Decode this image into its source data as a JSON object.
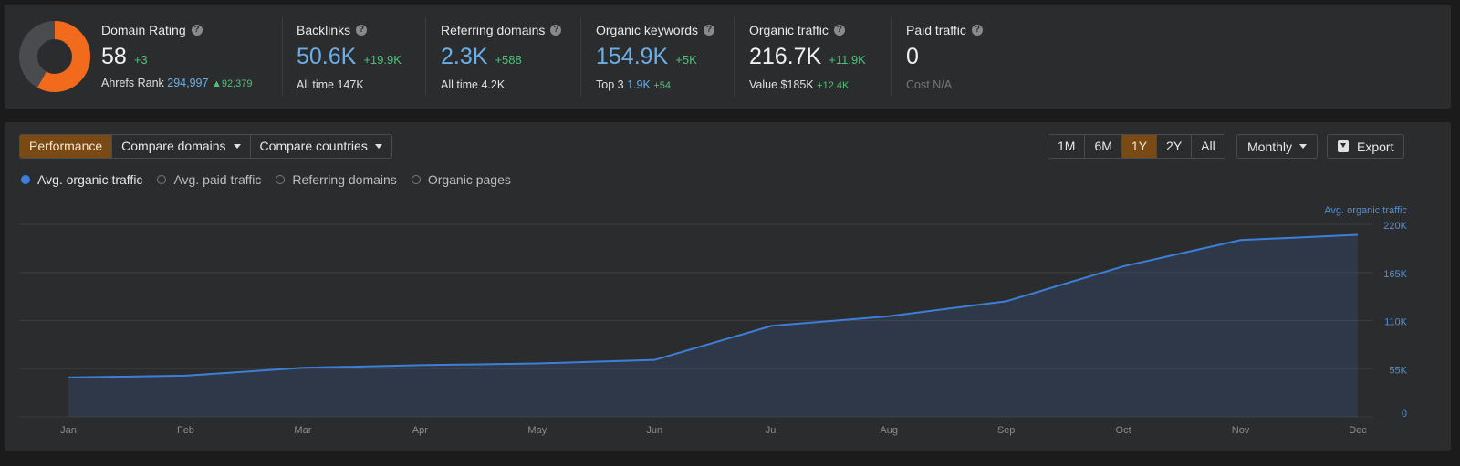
{
  "metrics": {
    "domain_rating": {
      "label": "Domain Rating",
      "help": "?",
      "value": "58",
      "delta": "+3",
      "rank_label": "Ahrefs Rank",
      "rank_value": "294,997",
      "rank_delta": "92,379",
      "score": 58
    },
    "backlinks": {
      "label": "Backlinks",
      "help": "?",
      "value": "50.6K",
      "delta": "+19.9K",
      "sub_label": "All time",
      "sub_value": "147K"
    },
    "referring_domains": {
      "label": "Referring domains",
      "help": "?",
      "value": "2.3K",
      "delta": "+588",
      "sub_label": "All time",
      "sub_value": "4.2K"
    },
    "organic_keywords": {
      "label": "Organic keywords",
      "help": "?",
      "value": "154.9K",
      "delta": "+5K",
      "sub_label": "Top 3",
      "sub_value": "1.9K",
      "sub_delta": "+54"
    },
    "organic_traffic": {
      "label": "Organic traffic",
      "help": "?",
      "value": "216.7K",
      "delta": "+11.9K",
      "sub_label": "Value",
      "sub_value": "$185K",
      "sub_delta": "+12.4K"
    },
    "paid_traffic": {
      "label": "Paid traffic",
      "help": "?",
      "value": "0",
      "sub_label": "Cost",
      "sub_value": "N/A"
    }
  },
  "toolbar": {
    "tabs": [
      "Performance",
      "Compare domains",
      "Compare countries"
    ],
    "active_tab": "Performance",
    "ranges": [
      "1M",
      "6M",
      "1Y",
      "2Y",
      "All"
    ],
    "active_range": "1Y",
    "interval": "Monthly",
    "export": "Export"
  },
  "legend": [
    {
      "label": "Avg. organic traffic",
      "active": true
    },
    {
      "label": "Avg. paid traffic",
      "active": false
    },
    {
      "label": "Referring domains",
      "active": false
    },
    {
      "label": "Organic pages",
      "active": false
    }
  ],
  "colors": {
    "accent": "#3d7fd8",
    "orange": "#f26a1b",
    "active_tab": "#7a4a14",
    "positive": "#4ec27a"
  },
  "icons": {
    "help": "question-circle-icon",
    "dropdown": "caret-down-icon",
    "export": "download-icon",
    "rating": "donut-gauge-icon"
  },
  "chart_data": {
    "type": "area",
    "series_label": "Avg. organic traffic",
    "categories": [
      "Jan",
      "Feb",
      "Mar",
      "Apr",
      "May",
      "Jun",
      "Jul",
      "Aug",
      "Sep",
      "Oct",
      "Nov",
      "Dec"
    ],
    "series": [
      {
        "name": "Avg. organic traffic",
        "values": [
          45000,
          47000,
          56000,
          59000,
          61000,
          65000,
          104000,
          115000,
          132000,
          172000,
          202000,
          208000
        ]
      }
    ],
    "y_ticks": [
      0,
      55000,
      110000,
      165000,
      220000
    ],
    "y_tick_labels": [
      "0",
      "55K",
      "110K",
      "165K",
      "220K"
    ],
    "ylim": [
      0,
      220000
    ],
    "grid": true
  }
}
